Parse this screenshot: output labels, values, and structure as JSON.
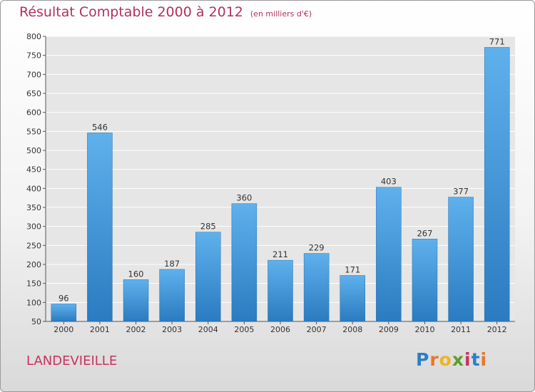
{
  "chart_data": {
    "type": "bar",
    "title": "Résultat Comptable 2000 à 2012",
    "subtitle": "(en milliers d'€)",
    "categories": [
      "2000",
      "2001",
      "2002",
      "2003",
      "2004",
      "2005",
      "2006",
      "2007",
      "2008",
      "2009",
      "2010",
      "2011",
      "2012"
    ],
    "values": [
      96,
      546,
      160,
      187,
      285,
      360,
      211,
      229,
      171,
      403,
      267,
      377,
      771
    ],
    "yticks": [
      50,
      100,
      150,
      200,
      250,
      300,
      350,
      400,
      450,
      500,
      550,
      600,
      650,
      700,
      750,
      800
    ],
    "ylim": [
      50,
      800
    ],
    "xlabel": "",
    "ylabel": "",
    "grid": true,
    "bar_color": "#3a8fd6"
  },
  "location": "LANDEVIEILLE",
  "logo": {
    "letters": [
      "P",
      "r",
      "o",
      "x",
      "i",
      "t",
      "i"
    ],
    "colors": [
      "#2b7fc4",
      "#e8772a",
      "#f0b31f",
      "#5a9e2e",
      "#c8325e",
      "#2b7fc4",
      "#e8772a"
    ]
  }
}
